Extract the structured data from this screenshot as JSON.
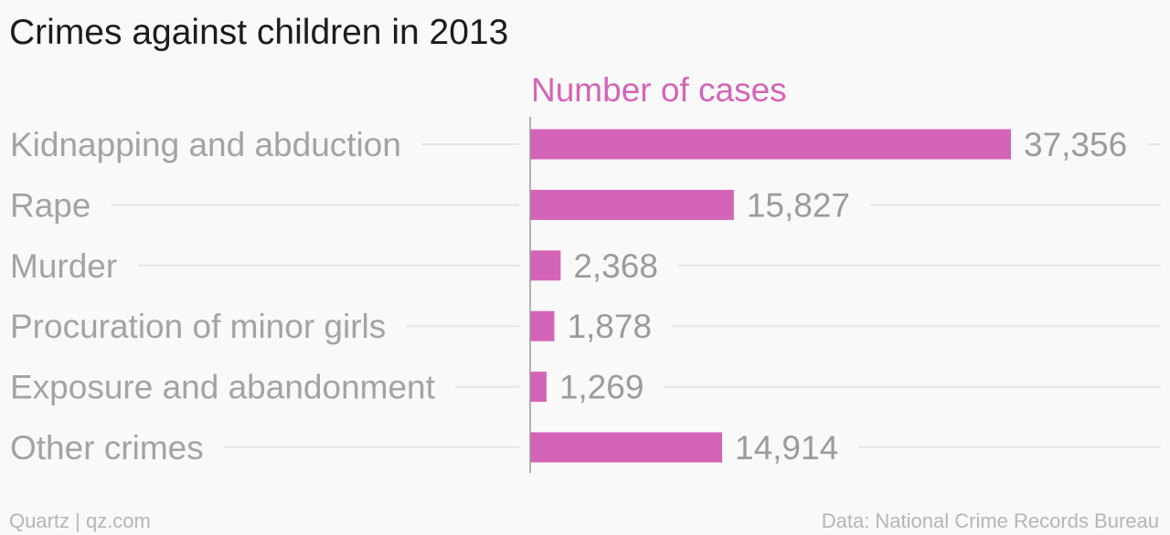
{
  "chart_data": {
    "type": "bar",
    "orientation": "horizontal",
    "title": "Crimes against children in 2013",
    "series": [
      {
        "name": "Number of cases",
        "values": [
          37356,
          15827,
          2368,
          1878,
          1269,
          14914
        ],
        "labels": [
          "37,356",
          "15,827",
          "2,368",
          "1,878",
          "1,269",
          "14,914"
        ]
      }
    ],
    "categories": [
      "Kidnapping and abduction",
      "Rape",
      "Murder",
      "Procuration of minor girls",
      "Exposure and abandonment",
      "Other crimes"
    ],
    "xlim": [
      0,
      37356
    ],
    "grid": true,
    "legend": "none"
  },
  "colors": {
    "bar": "#d464b8",
    "header": "#d464b8",
    "category_text": "#a3a3a3",
    "value_text": "#9b9b9b",
    "gridline": "#e6e6e6",
    "axis": "#999999"
  },
  "footer": {
    "source_left": "Quartz | qz.com",
    "source_right": "Data: National Crime Records Bureau"
  }
}
